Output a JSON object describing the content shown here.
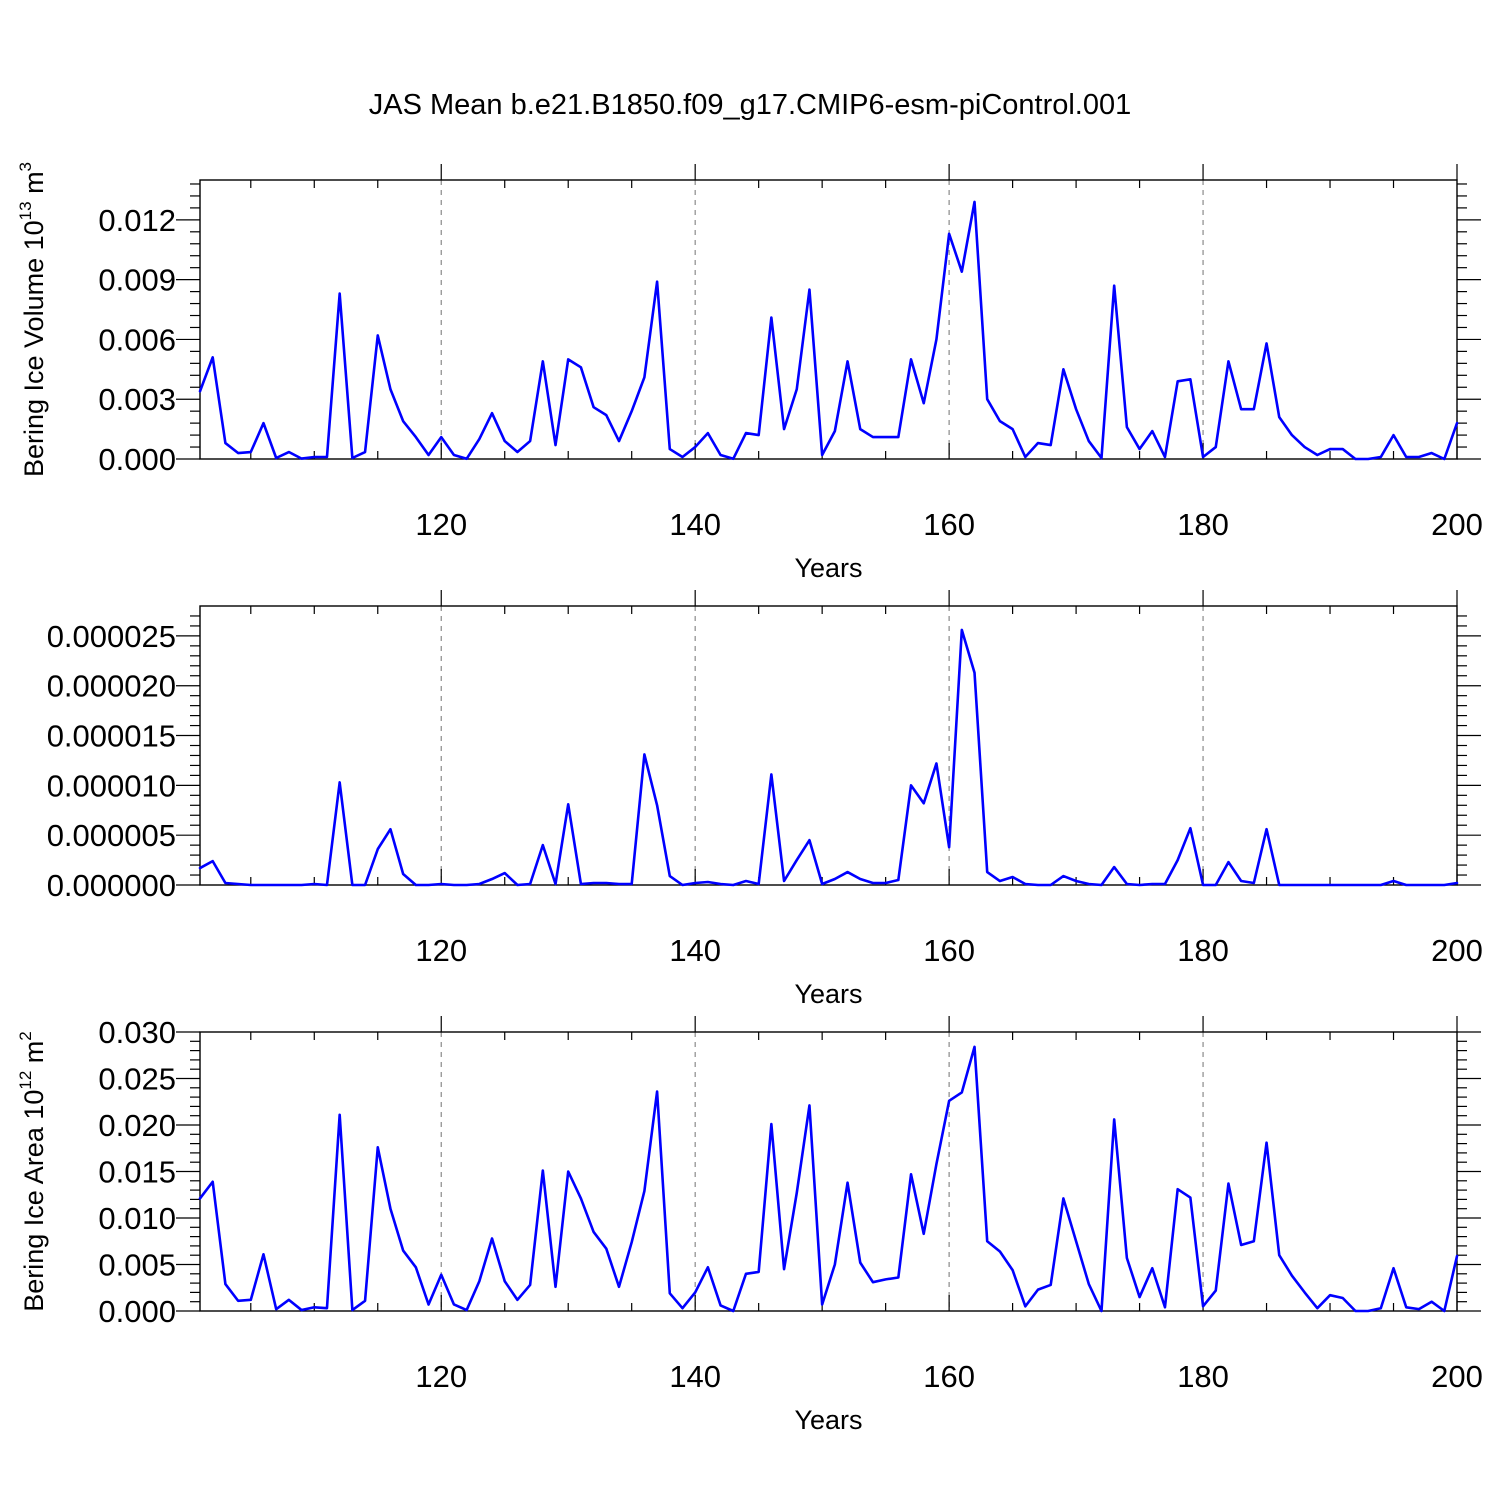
{
  "title": "JAS Mean b.e21.B1850.f09_g17.CMIP6-esm-piControl.001",
  "colors": {
    "series": "#0000ff",
    "grid": "#8a8a8a",
    "axes": "#000000"
  },
  "chart_data": [
    {
      "type": "line",
      "name": "volume",
      "title": "JAS Mean b.e21.B1850.f09_g17.CMIP6-esm-piControl.001",
      "xlabel": "Years",
      "ylabel": {
        "text": "Bering Ice Volume 10",
        "sup": "13",
        "unit": " m",
        "unit_sup": "3"
      },
      "xlim": [
        101,
        200
      ],
      "ylim": [
        0,
        0.014
      ],
      "xticks": [
        120,
        140,
        160,
        180,
        200
      ],
      "xtick_labels": [
        "120",
        "140",
        "160",
        "180",
        "200"
      ],
      "yticks": [
        0,
        0.003,
        0.006,
        0.009,
        0.012
      ],
      "ytick_labels": [
        "0.000",
        "0.003",
        "0.006",
        "0.009",
        "0.012"
      ],
      "grid": "vertical dashed at major x ticks",
      "x_start": 101,
      "values": [
        0.0034,
        0.0051,
        0.0008,
        0.0003,
        0.00035,
        0.0018,
        5e-05,
        0.00035,
        2e-05,
        0.0001,
        0.0001,
        0.0083,
        5e-05,
        0.00035,
        0.0062,
        0.0035,
        0.0019,
        0.0011,
        0.0002,
        0.0011,
        0.0002,
        1e-05,
        0.001,
        0.0023,
        0.0009,
        0.00035,
        0.0009,
        0.0049,
        0.0007,
        0.005,
        0.0046,
        0.0026,
        0.0022,
        0.0009,
        0.0024,
        0.0041,
        0.0089,
        0.0005,
        0.0001,
        0.0006,
        0.0013,
        0.0002,
        1e-05,
        0.0013,
        0.0012,
        0.0071,
        0.0015,
        0.0035,
        0.0085,
        0.0002,
        0.0014,
        0.0049,
        0.0015,
        0.0011,
        0.0011,
        0.0011,
        0.005,
        0.0028,
        0.006,
        0.0113,
        0.0094,
        0.0129,
        0.003,
        0.0019,
        0.0015,
        0.0001,
        0.0008,
        0.0007,
        0.0045,
        0.0025,
        0.0009,
        5e-05,
        0.0087,
        0.0016,
        0.0005,
        0.0014,
        0.0001,
        0.0039,
        0.004,
        0.0001,
        0.0006,
        0.0049,
        0.0025,
        0.0025,
        0.0058,
        0.0021,
        0.0012,
        0.0006,
        0.0002,
        0.0005,
        0.0005,
        0.0,
        0.0,
        0.0001,
        0.0012,
        0.0001,
        0.0001,
        0.0003,
        0.0,
        0.0018
      ]
    },
    {
      "type": "line",
      "name": "middle",
      "xlabel": "Years",
      "ylabel": null,
      "xlim": [
        101,
        200
      ],
      "ylim": [
        0,
        2.8e-05
      ],
      "xticks": [
        120,
        140,
        160,
        180,
        200
      ],
      "xtick_labels": [
        "120",
        "140",
        "160",
        "180",
        "200"
      ],
      "yticks": [
        0,
        5e-06,
        1e-05,
        1.5e-05,
        2e-05,
        2.5e-05
      ],
      "ytick_labels": [
        "0.000000",
        "0.000005",
        "0.000010",
        "0.000015",
        "0.000020",
        "0.000025"
      ],
      "grid": "vertical dashed at major x ticks",
      "x_start": 101,
      "values": [
        1.7e-06,
        2.4e-06,
        2e-07,
        1e-07,
        0.0,
        0.0,
        0.0,
        0.0,
        0.0,
        1e-07,
        0.0,
        1.03e-05,
        0.0,
        0.0,
        3.6e-06,
        5.6e-06,
        1.1e-06,
        0.0,
        0.0,
        1e-07,
        0.0,
        0.0,
        1e-07,
        6e-07,
        1.2e-06,
        0.0,
        1e-07,
        4e-06,
        1e-07,
        8.1e-06,
        1e-07,
        2e-07,
        2e-07,
        1e-07,
        1e-07,
        1.31e-05,
        8e-06,
        9e-07,
        0.0,
        2e-07,
        3e-07,
        1e-07,
        0.0,
        4e-07,
        1e-07,
        1.11e-05,
        4e-07,
        2.5e-06,
        4.5e-06,
        1e-07,
        6e-07,
        1.3e-06,
        6e-07,
        2e-07,
        2e-07,
        5e-07,
        1e-05,
        8.2e-06,
        1.22e-05,
        3.8e-06,
        2.56e-05,
        2.13e-05,
        1.3e-06,
        4e-07,
        8e-07,
        1e-07,
        0.0,
        0.0,
        9e-07,
        4e-07,
        1e-07,
        0.0,
        1.8e-06,
        1e-07,
        0.0,
        1e-07,
        1e-07,
        2.5e-06,
        5.7e-06,
        0.0,
        0.0,
        2.3e-06,
        4e-07,
        2e-07,
        5.6e-06,
        0.0,
        0.0,
        0.0,
        0.0,
        0.0,
        0.0,
        0.0,
        0.0,
        0.0,
        4e-07,
        0.0,
        0.0,
        0.0,
        0.0,
        2e-07
      ]
    },
    {
      "type": "line",
      "name": "area",
      "xlabel": "Years",
      "ylabel": {
        "text": "Bering Ice Area 10",
        "sup": "12",
        "unit": " m",
        "unit_sup": "2"
      },
      "xlim": [
        101,
        200
      ],
      "ylim": [
        0,
        0.03
      ],
      "xticks": [
        120,
        140,
        160,
        180,
        200
      ],
      "xtick_labels": [
        "120",
        "140",
        "160",
        "180",
        "200"
      ],
      "yticks": [
        0,
        0.005,
        0.01,
        0.015,
        0.02,
        0.025,
        0.03
      ],
      "ytick_labels": [
        "0.000",
        "0.005",
        "0.010",
        "0.015",
        "0.020",
        "0.025",
        "0.030"
      ],
      "grid": "vertical dashed at major x ticks",
      "x_start": 101,
      "values": [
        0.0121,
        0.0139,
        0.0029,
        0.0011,
        0.0012,
        0.0061,
        0.0002,
        0.0012,
        0.0001,
        0.0004,
        0.0003,
        0.0211,
        0.0001,
        0.0011,
        0.0176,
        0.011,
        0.0065,
        0.0047,
        0.0007,
        0.0039,
        0.0007,
        0.0001,
        0.0032,
        0.0078,
        0.0032,
        0.0012,
        0.0028,
        0.0151,
        0.0026,
        0.015,
        0.0121,
        0.0085,
        0.0067,
        0.0026,
        0.0074,
        0.0129,
        0.0236,
        0.0019,
        0.0003,
        0.002,
        0.0047,
        0.0006,
        0.0,
        0.004,
        0.0042,
        0.0201,
        0.0045,
        0.0127,
        0.0221,
        0.0007,
        0.005,
        0.0138,
        0.0052,
        0.0031,
        0.0034,
        0.0036,
        0.0147,
        0.0083,
        0.0158,
        0.0226,
        0.0235,
        0.0284,
        0.0075,
        0.0064,
        0.0044,
        0.0005,
        0.0023,
        0.0028,
        0.0121,
        0.0075,
        0.0029,
        0.0,
        0.0206,
        0.0057,
        0.0015,
        0.0046,
        0.0004,
        0.0131,
        0.0122,
        0.0005,
        0.0022,
        0.0137,
        0.0071,
        0.0075,
        0.0181,
        0.006,
        0.0038,
        0.002,
        0.0003,
        0.0017,
        0.0014,
        0.0,
        0.0,
        0.0003,
        0.0046,
        0.0004,
        0.0002,
        0.001,
        0.0,
        0.0059
      ]
    }
  ]
}
